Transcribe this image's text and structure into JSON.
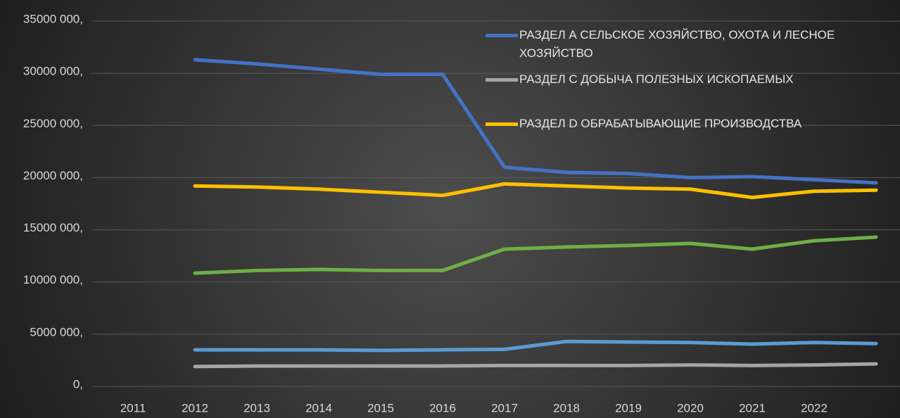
{
  "chart_data": {
    "type": "line",
    "categories": [
      "2011",
      "2012",
      "2013",
      "2014",
      "2015",
      "2016",
      "2017",
      "2018",
      "2019",
      "2020",
      "2021",
      "2022",
      null
    ],
    "series": [
      {
        "name": "РАЗДЕЛ А СЕЛЬСКОЕ ХОЗЯЙСТВО, ОХОТА И ЛЕСНОЕ ХОЗЯЙСТВО",
        "color": "#4472c4",
        "values": [
          null,
          31300000,
          30900000,
          30400000,
          29900000,
          29900000,
          21000000,
          20500000,
          20400000,
          20000000,
          20100000,
          19800000,
          19500000
        ]
      },
      {
        "name": "РАЗДЕЛ С ДОБЫЧА ПОЛЕЗНЫХ ИСКОПАЕМЫХ",
        "color": "#a5a5a5",
        "values": [
          null,
          1900000,
          1950000,
          1950000,
          1950000,
          1950000,
          2000000,
          2000000,
          2000000,
          2050000,
          2000000,
          2050000,
          2150000
        ]
      },
      {
        "name": "РАЗДЕЛ D ОБРАБАТЫВАЮЩИЕ ПРОИЗВОДСТВА",
        "color": "#ffc000",
        "values": [
          null,
          19200000,
          19100000,
          18900000,
          18600000,
          18300000,
          19400000,
          19200000,
          19000000,
          18900000,
          18100000,
          18700000,
          18800000
        ]
      },
      {
        "color": "#70ad47",
        "values": [
          null,
          10850000,
          11100000,
          11200000,
          11100000,
          11100000,
          13150000,
          13350000,
          13500000,
          13700000,
          13150000,
          13950000,
          14300000
        ]
      },
      {
        "color": "#5b9bd5",
        "values": [
          null,
          3500000,
          3500000,
          3500000,
          3450000,
          3500000,
          3550000,
          4300000,
          4250000,
          4200000,
          4050000,
          4200000,
          4100000
        ]
      }
    ],
    "ylim": [
      0,
      35000000
    ],
    "yticks": [
      {
        "value": 0,
        "label": "0,"
      },
      {
        "value": 5000000,
        "label": "5000 000,"
      },
      {
        "value": 10000000,
        "label": "10000 000,"
      },
      {
        "value": 15000000,
        "label": "15000 000,"
      },
      {
        "value": 20000000,
        "label": "20000 000,"
      },
      {
        "value": 25000000,
        "label": "25000 000,"
      },
      {
        "value": 30000000,
        "label": "30000 000,"
      },
      {
        "value": 35000000,
        "label": "35000 000,"
      }
    ],
    "grid": true,
    "legend": "top-right"
  }
}
